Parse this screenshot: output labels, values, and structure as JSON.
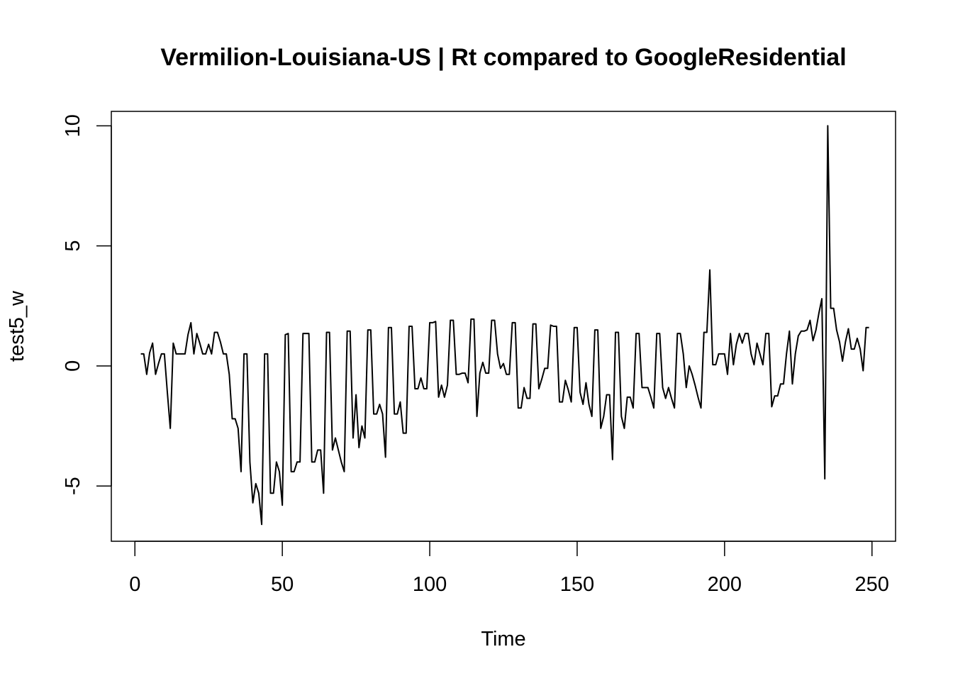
{
  "chart_data": {
    "type": "line",
    "title": "Vermilion-Louisiana-US | Rt compared to GoogleResidential",
    "xlabel": "Time",
    "ylabel": "test5_w",
    "xlim": [
      -8,
      258
    ],
    "ylim": [
      -7.3,
      10.6
    ],
    "x_ticks": [
      0,
      50,
      100,
      150,
      200,
      250
    ],
    "y_ticks": [
      -5,
      0,
      5,
      10
    ],
    "grid": false,
    "legend": "none",
    "line_color": "#000000",
    "series": [
      {
        "x_start": 2,
        "values": [
          0.5,
          0.5,
          -0.35,
          0.55,
          0.95,
          -0.35,
          0.1,
          0.5,
          0.5,
          -1.1,
          -2.6,
          0.95,
          0.5,
          0.5,
          0.5,
          0.5,
          1.3,
          1.8,
          0.5,
          1.35,
          0.95,
          0.5,
          0.5,
          0.9,
          0.5,
          1.4,
          1.4,
          1.0,
          0.5,
          0.5,
          -0.35,
          -2.2,
          -2.2,
          -2.6,
          -4.4,
          0.5,
          0.5,
          -4.0,
          -5.7,
          -4.9,
          -5.3,
          -6.6,
          0.5,
          0.5,
          -5.3,
          -5.3,
          -4.0,
          -4.4,
          -5.8,
          1.3,
          1.35,
          -4.4,
          -4.4,
          -4.0,
          -4.0,
          1.35,
          1.35,
          1.35,
          -4.0,
          -4.0,
          -3.5,
          -3.5,
          -5.3,
          1.4,
          1.4,
          -3.5,
          -3.0,
          -3.5,
          -4.0,
          -4.4,
          1.45,
          1.45,
          -3.0,
          -1.2,
          -3.4,
          -2.5,
          -3.0,
          1.5,
          1.5,
          -2.0,
          -2.0,
          -1.6,
          -2.0,
          -3.8,
          1.6,
          1.6,
          -2.0,
          -2.0,
          -1.5,
          -2.8,
          -2.8,
          1.65,
          1.65,
          -0.95,
          -0.95,
          -0.5,
          -0.95,
          -0.95,
          1.8,
          1.8,
          1.85,
          -1.3,
          -0.8,
          -1.3,
          -0.8,
          1.9,
          1.9,
          -0.35,
          -0.35,
          -0.3,
          -0.3,
          -0.7,
          1.95,
          1.95,
          -2.1,
          -0.3,
          0.15,
          -0.3,
          -0.3,
          1.9,
          1.9,
          0.5,
          -0.1,
          0.1,
          -0.35,
          -0.35,
          1.8,
          1.8,
          -1.75,
          -1.75,
          -0.9,
          -1.35,
          -1.35,
          1.75,
          1.75,
          -0.95,
          -0.55,
          -0.1,
          -0.1,
          1.7,
          1.65,
          1.65,
          -1.5,
          -1.5,
          -0.6,
          -1.0,
          -1.5,
          1.6,
          1.6,
          -1.1,
          -1.6,
          -0.7,
          -1.6,
          -2.1,
          1.5,
          1.5,
          -2.6,
          -2.1,
          -1.2,
          -1.2,
          -3.9,
          1.4,
          1.4,
          -2.1,
          -2.6,
          -1.3,
          -1.3,
          -1.75,
          1.35,
          1.35,
          -0.9,
          -0.9,
          -0.9,
          -1.3,
          -1.75,
          1.35,
          1.35,
          -0.9,
          -1.35,
          -0.9,
          -1.35,
          -1.75,
          1.35,
          1.35,
          0.5,
          -0.9,
          0.0,
          -0.35,
          -0.8,
          -1.3,
          -1.75,
          1.4,
          1.4,
          4.0,
          0.05,
          0.05,
          0.5,
          0.5,
          0.5,
          -0.35,
          1.35,
          0.05,
          0.9,
          1.35,
          0.95,
          1.35,
          1.35,
          0.5,
          0.05,
          0.95,
          0.5,
          0.05,
          1.35,
          1.35,
          -1.7,
          -1.25,
          -1.25,
          -0.75,
          -0.75,
          0.5,
          1.45,
          -0.75,
          0.5,
          1.25,
          1.45,
          1.45,
          1.5,
          1.9,
          1.05,
          1.5,
          2.2,
          2.8,
          -4.7,
          10.0,
          2.4,
          2.4,
          1.5,
          1.0,
          0.2,
          1.0,
          1.55,
          0.7,
          0.7,
          1.15,
          0.7,
          -0.2,
          1.6,
          1.6
        ]
      }
    ]
  }
}
